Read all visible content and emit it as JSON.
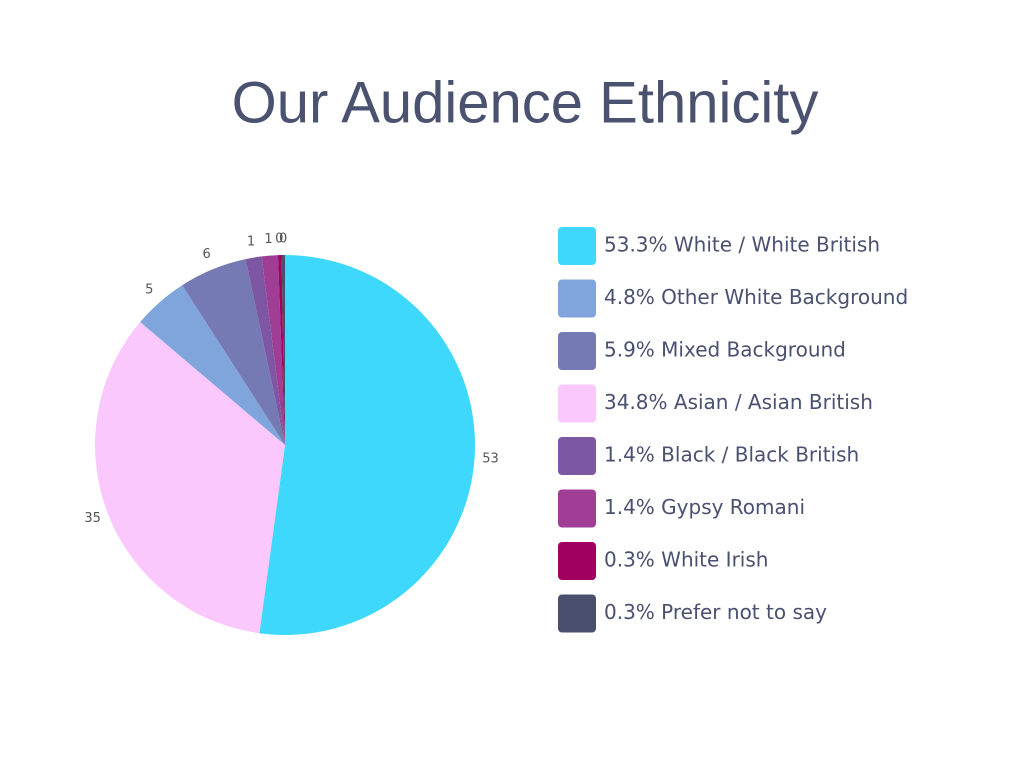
{
  "chart_data": {
    "type": "pie",
    "title": "Our Audience Ethnicity",
    "values": [
      53.3,
      34.8,
      4.8,
      5.9,
      1.4,
      1.4,
      0.3,
      0.3
    ],
    "value_labels": [
      "53",
      "35",
      "5",
      "6",
      "1",
      "1",
      "0",
      "0"
    ],
    "colors": [
      "#3dd8fc",
      "#fac8fc",
      "#7fa5dc",
      "#7579b4",
      "#7d56a4",
      "#a03e96",
      "#a0005f",
      "#4a4f6e"
    ],
    "legend": [
      {
        "label": "53.3% White / White British",
        "color": "#3dd8fc"
      },
      {
        "label": "4.8% Other White Background",
        "color": "#7fa5dc"
      },
      {
        "label": "5.9% Mixed Background",
        "color": "#7579b4"
      },
      {
        "label": "34.8% Asian / Asian British",
        "color": "#fac8fc"
      },
      {
        "label": "1.4% Black / Black British",
        "color": "#7d56a4"
      },
      {
        "label": "1.4% Gypsy Romani",
        "color": "#a03e96"
      },
      {
        "label": "0.3% White Irish",
        "color": "#a0005f"
      },
      {
        "label": "0.3% Prefer not to say",
        "color": "#4a4f6e"
      }
    ]
  }
}
